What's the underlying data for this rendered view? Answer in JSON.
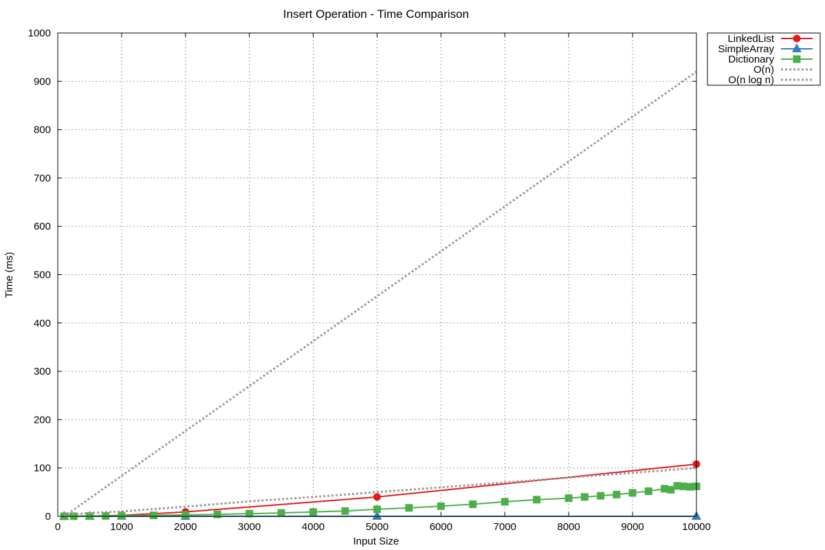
{
  "chart_data": {
    "type": "line",
    "title": "Insert Operation - Time Comparison",
    "xlabel": "Input Size",
    "ylabel": "Time (ms)",
    "xlim": [
      0,
      10000
    ],
    "ylim": [
      0,
      1000
    ],
    "x_ticks": [
      0,
      1000,
      2000,
      3000,
      4000,
      5000,
      6000,
      7000,
      8000,
      9000,
      10000
    ],
    "y_ticks": [
      0,
      100,
      200,
      300,
      400,
      500,
      600,
      700,
      800,
      900,
      1000
    ],
    "grid": true,
    "legend_position": "outside-top-right",
    "series": [
      {
        "name": "LinkedList",
        "color": "#e41a1c",
        "marker": "circle",
        "style": "solid",
        "x": [
          100,
          500,
          1000,
          2000,
          5000,
          10000
        ],
        "y": [
          0,
          0.5,
          2,
          9,
          40,
          108
        ]
      },
      {
        "name": "SimpleArray",
        "color": "#377eb8",
        "marker": "triangle",
        "style": "solid",
        "x": [
          100,
          500,
          1000,
          2000,
          5000,
          10000
        ],
        "y": [
          0,
          0,
          0,
          0,
          0,
          0
        ]
      },
      {
        "name": "Dictionary",
        "color": "#4daf4a",
        "marker": "square",
        "style": "solid",
        "x": [
          100,
          250,
          500,
          750,
          1000,
          1500,
          2000,
          2500,
          3000,
          3500,
          4000,
          4500,
          5000,
          5500,
          6000,
          6500,
          7000,
          7500,
          8000,
          8250,
          8500,
          8750,
          9000,
          9250,
          9500,
          9600,
          9700,
          9800,
          9900,
          10000
        ],
        "y": [
          0,
          0.2,
          0.5,
          0.8,
          1,
          2,
          3,
          4,
          5.5,
          7,
          9,
          11,
          14.5,
          17.5,
          21,
          25,
          30,
          34.5,
          37.5,
          40,
          42.5,
          45,
          48.5,
          52,
          57,
          55,
          63,
          62,
          61,
          62
        ]
      },
      {
        "name": "O(n)",
        "color": "#9b9b9b",
        "marker": "none",
        "style": "dotted",
        "x": [
          100,
          10000
        ],
        "y": [
          0,
          920
        ]
      },
      {
        "name": "O(n log n)",
        "color": "#9b9b9b",
        "marker": "none",
        "style": "dotted",
        "x": [
          100,
          500,
          1000,
          2000,
          3000,
          4000,
          5000,
          6000,
          7000,
          8000,
          9000,
          10000
        ],
        "y": [
          2,
          7,
          10,
          20,
          31,
          40,
          50,
          60,
          70,
          80,
          90,
          100
        ]
      }
    ]
  }
}
